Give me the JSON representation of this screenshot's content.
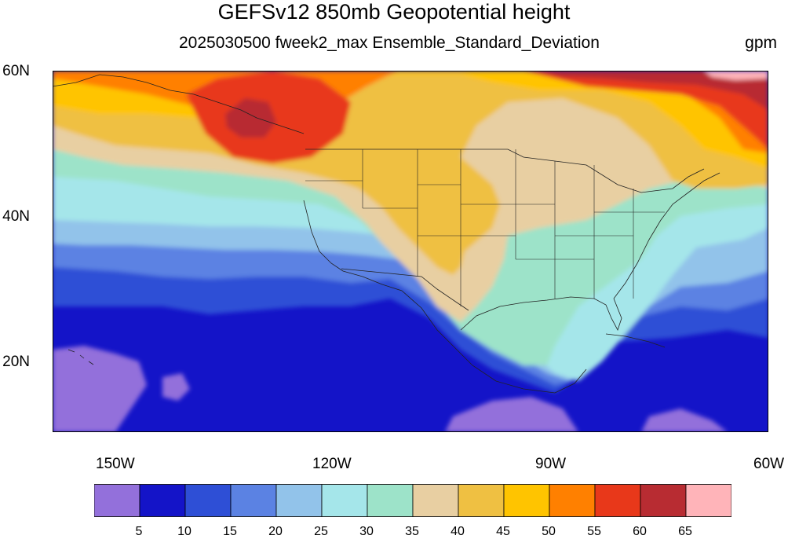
{
  "title": "GEFSv12 850mb Geopotential height",
  "subtitle": "2025030500 fweek2_max Ensemble_Standard_Deviation",
  "units": "gpm",
  "axes": {
    "lat_labels": [
      "60N",
      "40N",
      "20N"
    ],
    "lon_labels": [
      "150W",
      "120W",
      "90W",
      "60W"
    ]
  },
  "colorbar": {
    "colors": [
      "#9370db",
      "#1414c8",
      "#2e4fd6",
      "#5b82e3",
      "#92c3ea",
      "#a5e6ea",
      "#9de3c9",
      "#e8cfa2",
      "#efc042",
      "#ffc400",
      "#ff8000",
      "#e8381a",
      "#b82c32",
      "#ffb4b9"
    ],
    "labels": [
      "5",
      "10",
      "15",
      "20",
      "25",
      "30",
      "35",
      "40",
      "45",
      "50",
      "55",
      "60",
      "65"
    ]
  }
}
